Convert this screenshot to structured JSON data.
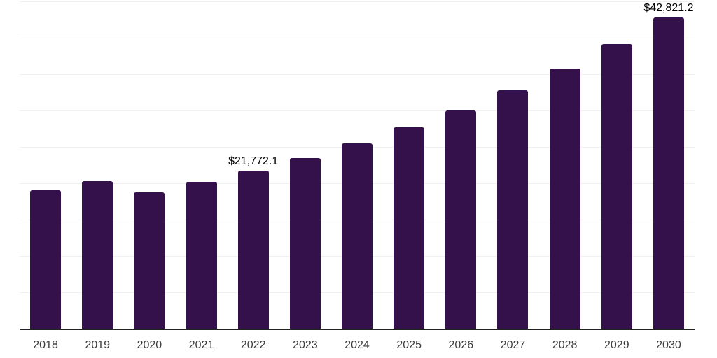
{
  "chart_data": {
    "type": "bar",
    "title": "",
    "xlabel": "",
    "ylabel": "",
    "categories": [
      "2018",
      "2019",
      "2020",
      "2021",
      "2022",
      "2023",
      "2024",
      "2025",
      "2026",
      "2027",
      "2028",
      "2029",
      "2030"
    ],
    "values": [
      19000,
      20300,
      18750,
      20150,
      21772.1,
      23500,
      25500,
      27700,
      30000,
      32800,
      35750,
      39100,
      42821.2
    ],
    "data_labels": [
      "",
      "",
      "",
      "",
      "$21,772.1",
      "",
      "",
      "",
      "",
      "",
      "",
      "",
      "$42,821.2"
    ],
    "ylim": [
      0,
      45000
    ],
    "gridline_step": 5000,
    "grid": true,
    "legend": false,
    "colors": {
      "bar": "#34114B",
      "axis": "#222222",
      "gridline": "#f0f0f0",
      "tick_label": "#3d3d3d",
      "data_label": "#000000",
      "background": "#ffffff"
    }
  }
}
